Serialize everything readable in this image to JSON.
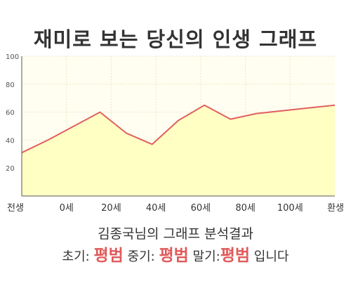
{
  "chart_data": {
    "type": "area",
    "title": "재미로 보는 당신의 인생 그래프",
    "x_categories": [
      "전생",
      "0세",
      "20세",
      "40세",
      "60세",
      "80세",
      "100세",
      "환생"
    ],
    "x": [
      -10,
      0,
      20,
      30,
      40,
      50,
      60,
      70,
      80,
      90,
      100,
      110
    ],
    "y": [
      31,
      40,
      60,
      45,
      37,
      54,
      65,
      55,
      59,
      61,
      63,
      65
    ],
    "ylim": [
      0,
      100
    ],
    "y_ticks": [
      "100",
      "80",
      "60",
      "40",
      "20"
    ],
    "grid": true,
    "colors": {
      "line": "#e06060",
      "fill": "#ffffc4",
      "plot_bg": "#fffef0",
      "grid": "#ece7c8"
    }
  },
  "result": {
    "subtitle": "김종국님의 그래프 분석결과",
    "early_label": "초기:",
    "early_value": "평범",
    "middle_label": "중기:",
    "middle_value": "평범",
    "late_label": "말기:",
    "late_value": "평범",
    "ending": "입니다"
  }
}
